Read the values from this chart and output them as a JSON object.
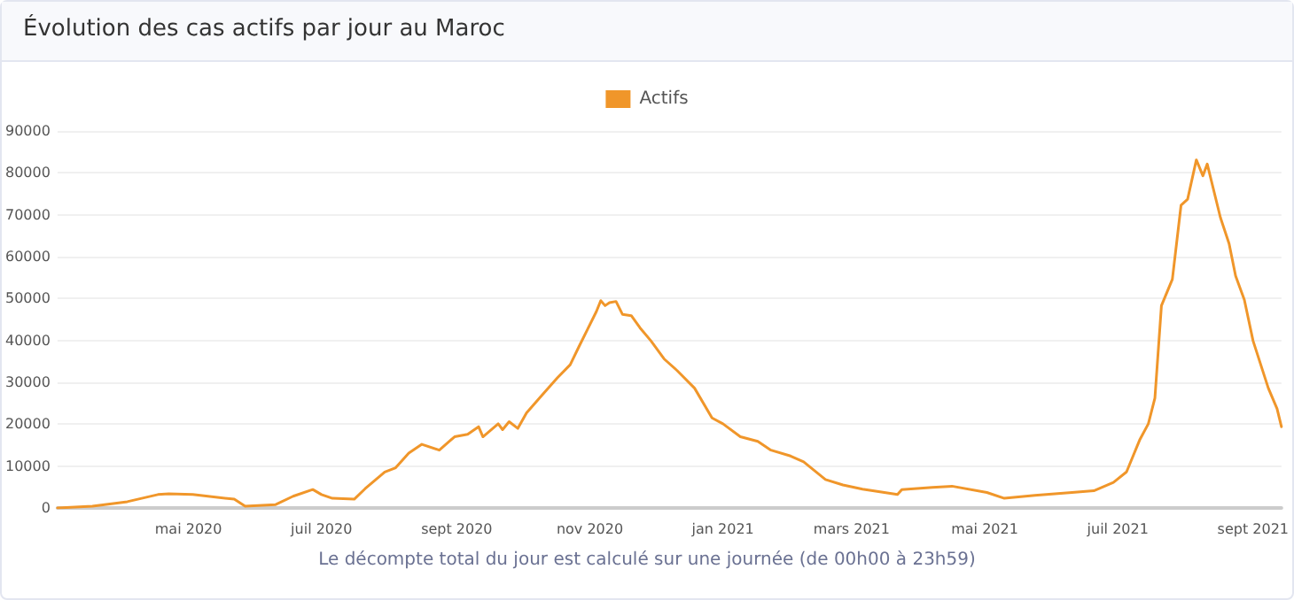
{
  "chart_data": {
    "type": "line",
    "title": "Évolution des cas actifs par jour au Maroc",
    "annotations": [
      "Le décompte total du jour est calculé sur une journée (de 00h00 à 23h59)"
    ],
    "x": [
      "2020-03-02",
      "2020-03-18",
      "2020-04-03",
      "2020-04-17",
      "2020-04-22",
      "2020-05-03",
      "2020-05-22",
      "2020-05-27",
      "2020-06-10",
      "2020-06-18",
      "2020-06-27",
      "2020-07-01",
      "2020-07-06",
      "2020-07-16",
      "2020-07-21",
      "2020-07-30",
      "2020-08-04",
      "2020-08-10",
      "2020-08-16",
      "2020-08-24",
      "2020-08-31",
      "2020-09-06",
      "2020-09-11",
      "2020-09-13",
      "2020-09-20",
      "2020-09-22",
      "2020-09-25",
      "2020-09-29",
      "2020-10-03",
      "2020-10-10",
      "2020-10-17",
      "2020-10-23",
      "2020-10-27",
      "2020-10-31",
      "2020-11-04",
      "2020-11-06",
      "2020-11-08",
      "2020-11-10",
      "2020-11-13",
      "2020-11-16",
      "2020-11-20",
      "2020-11-24",
      "2020-11-29",
      "2020-12-05",
      "2020-12-11",
      "2020-12-19",
      "2020-12-27",
      "2021-01-01",
      "2021-01-09",
      "2021-01-17",
      "2021-01-23",
      "2021-02-01",
      "2021-02-07",
      "2021-02-17",
      "2021-02-25",
      "2021-03-06",
      "2021-03-22",
      "2021-03-24",
      "2021-04-07",
      "2021-04-16",
      "2021-05-02",
      "2021-05-10",
      "2021-05-24",
      "2021-06-10",
      "2021-06-20",
      "2021-06-29",
      "2021-07-05",
      "2021-07-11",
      "2021-07-15",
      "2021-07-18",
      "2021-07-21",
      "2021-07-26",
      "2021-07-30",
      "2021-08-02",
      "2021-08-06",
      "2021-08-09",
      "2021-08-11",
      "2021-08-17",
      "2021-08-21",
      "2021-08-24",
      "2021-08-28",
      "2021-09-01",
      "2021-09-08",
      "2021-09-12",
      "2021-09-14"
    ],
    "series": [
      {
        "name": "Actifs",
        "color": "#f0962a",
        "values": [
          0,
          400,
          1500,
          3200,
          3400,
          3200,
          2100,
          400,
          800,
          2800,
          4400,
          3200,
          2300,
          2100,
          4600,
          8600,
          9600,
          13100,
          15200,
          13800,
          17000,
          17600,
          19400,
          17000,
          20100,
          18700,
          20600,
          19000,
          22700,
          26900,
          31000,
          34200,
          38500,
          42700,
          46900,
          49500,
          48300,
          49000,
          49300,
          46200,
          45900,
          43000,
          39900,
          35600,
          32800,
          28600,
          21500,
          20100,
          17000,
          15900,
          13800,
          12400,
          11000,
          6800,
          5500,
          4500,
          3200,
          4400,
          4900,
          5200,
          3700,
          2300,
          3000,
          3700,
          4100,
          6100,
          8600,
          16200,
          20100,
          26200,
          48300,
          54600,
          72300,
          73700,
          83100,
          79300,
          82100,
          69400,
          63100,
          55400,
          49700,
          39900,
          28600,
          23700,
          19400
        ]
      }
    ],
    "xlim": [
      "2020-03-02",
      "2021-09-14"
    ],
    "xticks": [
      {
        "value": "2020-05-01",
        "label": "mai 2020"
      },
      {
        "value": "2020-07-01",
        "label": "juil 2020"
      },
      {
        "value": "2020-09-01",
        "label": "sept 2020"
      },
      {
        "value": "2020-11-01",
        "label": "nov 2020"
      },
      {
        "value": "2021-01-01",
        "label": "jan 2021"
      },
      {
        "value": "2021-03-01",
        "label": "mars 2021"
      },
      {
        "value": "2021-05-01",
        "label": "mai 2021"
      },
      {
        "value": "2021-07-01",
        "label": "juil 2021"
      },
      {
        "value": "2021-09-01",
        "label": "sept 2021"
      }
    ],
    "ylim": [
      0,
      90000
    ],
    "yticks": [
      0,
      10000,
      20000,
      30000,
      40000,
      50000,
      60000,
      70000,
      80000,
      90000
    ],
    "grid": "y",
    "legend": "top",
    "marker": "none",
    "line_style": "solid"
  }
}
